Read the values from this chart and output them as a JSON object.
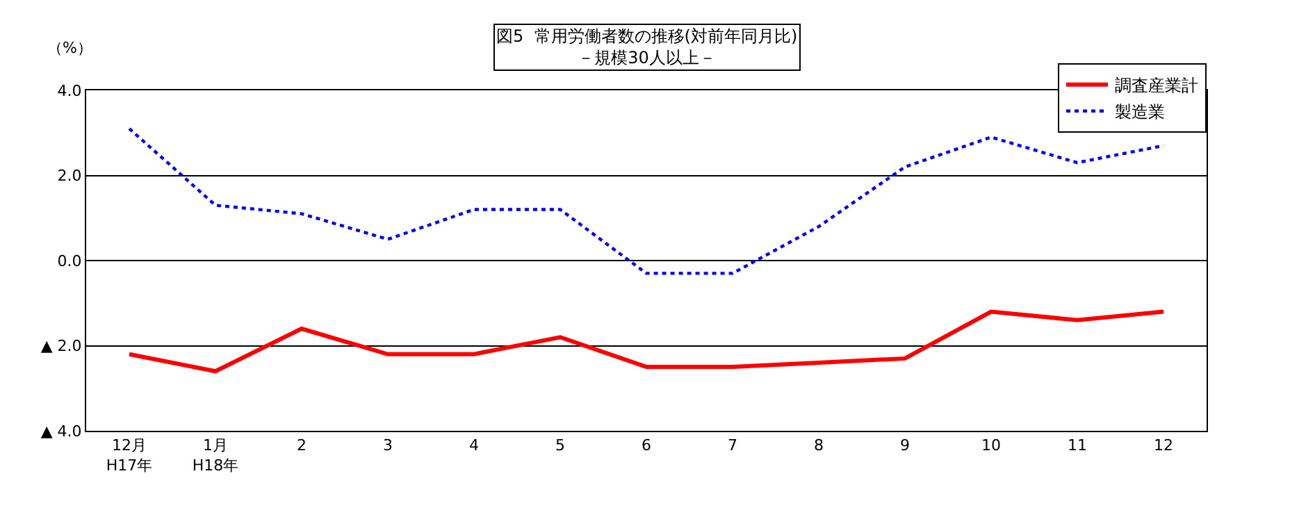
{
  "chart_data": {
    "type": "line",
    "title": "図5  常用労働者数の推移(対前年同月比)",
    "subtitle": "－規模30人以上－",
    "ylabel": "（%）",
    "categories": [
      "12月\nH17年",
      "1月\nH18年",
      "2",
      "3",
      "4",
      "5",
      "6",
      "7",
      "8",
      "9",
      "10",
      "11",
      "12"
    ],
    "series": [
      {
        "name": "調査産業計",
        "color": "#ff0000",
        "line_style": "solid",
        "values": [
          -2.2,
          -2.6,
          -1.6,
          -2.2,
          -2.2,
          -1.8,
          -2.5,
          -2.5,
          -2.4,
          -2.3,
          -1.2,
          -1.4,
          -1.2
        ]
      },
      {
        "name": "製造業",
        "color": "#0000ff",
        "line_style": "dotted",
        "values": [
          3.1,
          1.3,
          1.1,
          0.5,
          1.2,
          1.2,
          -0.3,
          -0.3,
          0.8,
          2.2,
          2.9,
          2.3,
          2.7
        ]
      }
    ],
    "ylim": [
      -4.0,
      4.0
    ],
    "yticks": [
      {
        "value": 4.0,
        "label": "4.0"
      },
      {
        "value": 2.0,
        "label": "2.0"
      },
      {
        "value": 0.0,
        "label": "0.0"
      },
      {
        "value": -2.0,
        "label": "▲ 2.0"
      },
      {
        "value": -4.0,
        "label": "▲ 4.0"
      }
    ],
    "grid": "y",
    "legend": "top right",
    "marker": "none"
  }
}
